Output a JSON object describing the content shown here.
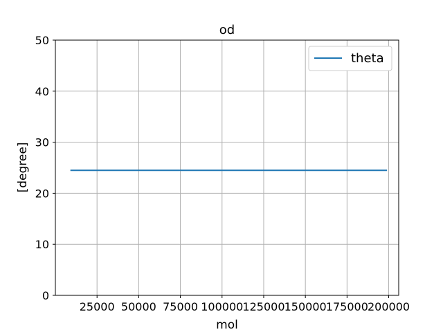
{
  "chart_data": {
    "type": "line",
    "title": "od",
    "xlabel": "mol",
    "ylabel": "[degree]",
    "xlim": [
      0,
      206000
    ],
    "ylim": [
      0,
      50
    ],
    "xticks": [
      25000,
      50000,
      75000,
      100000,
      125000,
      150000,
      175000,
      200000
    ],
    "yticks": [
      0,
      10,
      20,
      30,
      40,
      50
    ],
    "grid": true,
    "legend": {
      "position": "top-right",
      "entries": [
        "theta"
      ]
    },
    "series": [
      {
        "name": "theta",
        "color": "#1f77b4",
        "x": [
          9000,
          199000
        ],
        "y": [
          24.5,
          24.5
        ]
      }
    ]
  }
}
